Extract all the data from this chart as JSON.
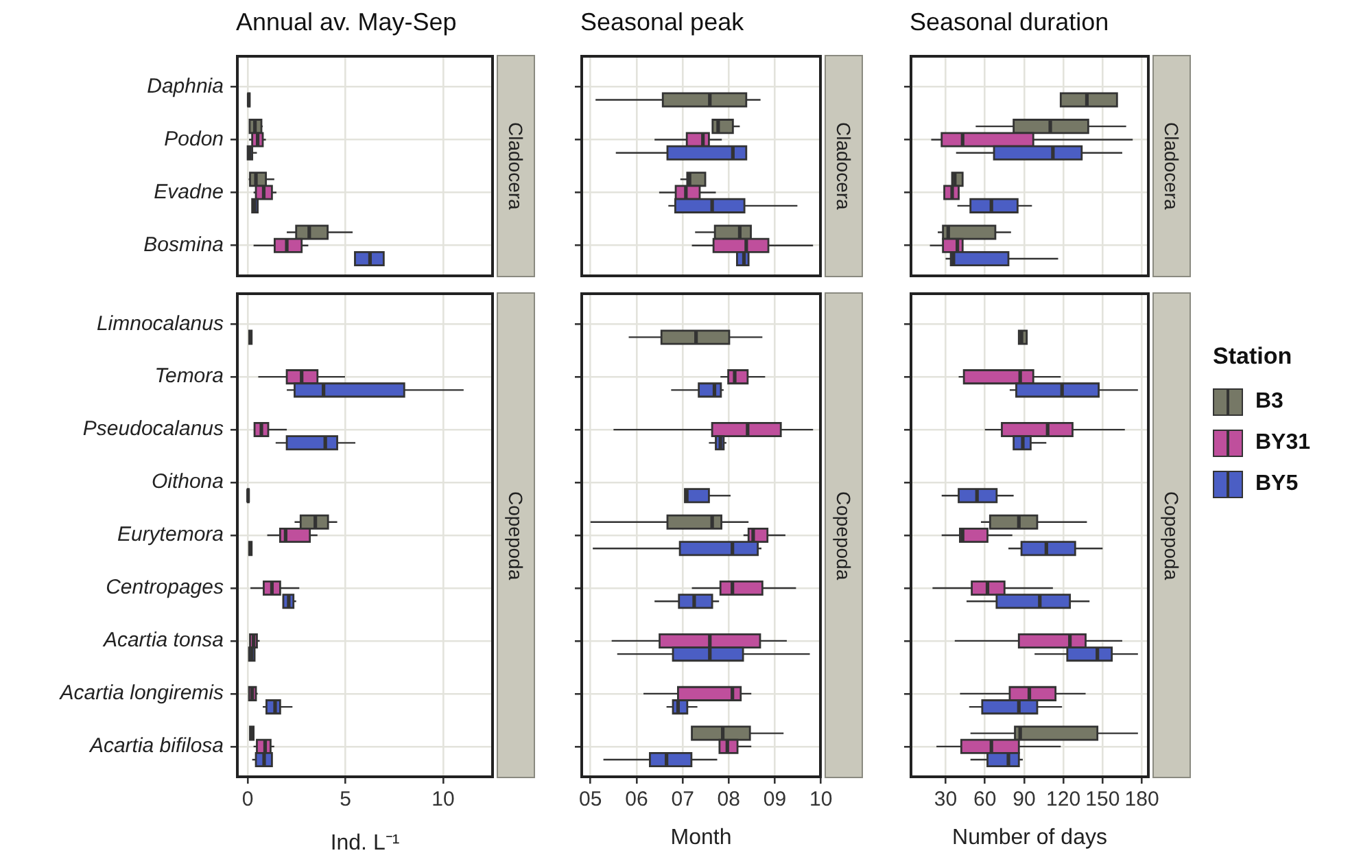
{
  "chart_data": [
    {
      "type": "box",
      "orientation": "horizontal",
      "title": "Annual av. May-Sep",
      "categories": [
        "Daphnia",
        "Podon",
        "Evadne",
        "Bosmina"
      ],
      "xlim": [
        -0.6,
        12.6
      ],
      "xticks": [
        0,
        5,
        10
      ],
      "grid": true,
      "tick_labels": "y",
      "annotations": [
        "Cladocera"
      ],
      "legend": "right",
      "legend_title": "Station",
      "series": [
        {
          "name": "B3",
          "color": "#767866",
          "boxes": [
            {
              "low": 0,
              "q1": 0.02,
              "median": 0.05,
              "q3": 0.1,
              "high": 0.12
            },
            {
              "low": 0.1,
              "q1": 0.1,
              "median": 0.37,
              "q3": 0.7,
              "high": 0.77
            },
            {
              "low": 0.05,
              "q1": 0.12,
              "median": 0.42,
              "q3": 0.93,
              "high": 1.36
            },
            {
              "low": 2,
              "q1": 2.48,
              "median": 3.15,
              "q3": 4.09,
              "high": 5.37
            }
          ]
        },
        {
          "name": "BY31",
          "color": "#bf4f9c",
          "boxes": [
            null,
            {
              "low": 0.07,
              "q1": 0.23,
              "median": 0.51,
              "q3": 0.77,
              "high": 0.93
            },
            {
              "low": 0.3,
              "q1": 0.42,
              "median": 0.82,
              "q3": 1.24,
              "high": 1.47
            },
            {
              "low": 0.3,
              "q1": 1.38,
              "median": 2,
              "q3": 2.76,
              "high": 3.1
            }
          ]
        },
        {
          "name": "BY5",
          "color": "#4b5ec4",
          "boxes": [
            null,
            {
              "low": 0,
              "q1": 0,
              "median": 0.1,
              "q3": 0.23,
              "high": 0.47
            },
            {
              "low": 0.23,
              "q1": 0.23,
              "median": 0.35,
              "q3": 0.51,
              "high": 0.51
            },
            {
              "low": 5.49,
              "q1": 5.49,
              "median": 6.26,
              "q3": 6.96,
              "high": 6.96
            }
          ]
        }
      ]
    },
    {
      "type": "box",
      "orientation": "horizontal",
      "title": "Seasonal peak",
      "categories": [
        null,
        null,
        null,
        null
      ],
      "xlim": [
        4.78,
        10.02
      ],
      "xticks": [
        5,
        6,
        7,
        8,
        9,
        10
      ],
      "grid": true,
      "tick_labels": false,
      "annotations": [
        "Cladocera"
      ],
      "series": [
        {
          "color": "#767866",
          "boxes": [
            {
              "low": 5.11,
              "q1": 6.57,
              "median": 7.59,
              "q3": 8.38,
              "high": 8.69
            },
            {
              "low": 7.65,
              "q1": 7.65,
              "median": 7.77,
              "q3": 8.09,
              "high": 8.24
            },
            {
              "low": 6.95,
              "q1": 7.1,
              "median": 7.15,
              "q3": 7.49,
              "high": 7.49
            },
            {
              "low": 7.27,
              "q1": 7.7,
              "median": 8.24,
              "q3": 8.48,
              "high": 8.48
            }
          ]
        },
        {
          "color": "#bf4f9c",
          "boxes": [
            null,
            {
              "low": 6.39,
              "q1": 7.09,
              "median": 7.44,
              "q3": 7.57,
              "high": 7.85
            },
            {
              "low": 6.49,
              "q1": 6.85,
              "median": 7.07,
              "q3": 7.37,
              "high": 7.72
            },
            {
              "low": 7.2,
              "q1": 7.67,
              "median": 8.38,
              "q3": 8.86,
              "high": 9.83
            }
          ]
        },
        {
          "color": "#4b5ec4",
          "boxes": [
            null,
            {
              "low": 5.55,
              "q1": 6.67,
              "median": 8.09,
              "q3": 8.38,
              "high": 8.38
            },
            {
              "low": 6.69,
              "q1": 6.84,
              "median": 7.64,
              "q3": 8.34,
              "high": 9.49
            },
            {
              "low": 8.18,
              "q1": 8.18,
              "median": 8.33,
              "q3": 8.43,
              "high": 8.43
            }
          ]
        }
      ]
    },
    {
      "type": "box",
      "orientation": "horizontal",
      "title": "Seasonal duration",
      "categories": [
        null,
        null,
        null,
        null
      ],
      "xlim": [
        2.5,
        186
      ],
      "xticks": [
        30,
        60,
        90,
        120,
        150,
        180
      ],
      "grid": true,
      "tick_labels": false,
      "annotations": [
        "Cladocera"
      ],
      "series": [
        {
          "color": "#767866",
          "boxes": [
            {
              "low": 118,
              "q1": 118,
              "median": 138,
              "q3": 161,
              "high": 161
            },
            {
              "low": 53,
              "q1": 82,
              "median": 110,
              "q3": 139,
              "high": 168
            },
            {
              "low": 35,
              "q1": 35,
              "median": 37,
              "q3": 43,
              "high": 43
            },
            {
              "low": 24,
              "q1": 28,
              "median": 32,
              "q3": 68,
              "high": 80
            }
          ]
        },
        {
          "color": "#bf4f9c",
          "boxes": [
            null,
            {
              "low": 19,
              "q1": 27,
              "median": 43,
              "q3": 97,
              "high": 173
            },
            {
              "low": 29,
              "q1": 29,
              "median": 35,
              "q3": 40,
              "high": 40
            },
            {
              "low": 18,
              "q1": 28,
              "median": 39,
              "q3": 43,
              "high": 43
            }
          ]
        },
        {
          "color": "#4b5ec4",
          "boxes": [
            null,
            {
              "low": 38,
              "q1": 67,
              "median": 112,
              "q3": 134,
              "high": 165
            },
            {
              "low": 39,
              "q1": 49,
              "median": 65,
              "q3": 85,
              "high": 96
            },
            {
              "low": 30,
              "q1": 34,
              "median": 36,
              "q3": 78,
              "high": 116
            }
          ]
        }
      ]
    },
    {
      "type": "box",
      "orientation": "horizontal",
      "xlabel": "Ind. L⁻¹",
      "categories": [
        "Limnocalanus",
        "Temora",
        "Pseudocalanus",
        "Oithona",
        "Eurytemora",
        "Centropages",
        "Acartia tonsa",
        "Acartia longiremis",
        "Acartia bifilosa"
      ],
      "xlim": [
        -0.6,
        12.6
      ],
      "xticks": [
        0,
        5,
        10
      ],
      "grid": true,
      "annotations": [
        "Copepoda"
      ],
      "series": [
        {
          "color": "#767866",
          "boxes": [
            {
              "low": 0.05,
              "q1": 0.08,
              "median": 0.15,
              "q3": 0.2,
              "high": 0.23
            },
            null,
            null,
            null,
            {
              "low": 2.4,
              "q1": 2.71,
              "median": 3.46,
              "q3": 4.11,
              "high": 4.58
            },
            null,
            null,
            null,
            {
              "low": 0.12,
              "q1": 0.12,
              "median": 0.2,
              "q3": 0.3,
              "high": 0.3
            }
          ]
        },
        {
          "color": "#bf4f9c",
          "boxes": [
            null,
            {
              "low": 0.54,
              "q1": 2,
              "median": 2.76,
              "q3": 3.57,
              "high": 4.98
            },
            {
              "low": 0.35,
              "q1": 0.35,
              "median": 0.7,
              "q3": 1.05,
              "high": 2
            },
            null,
            {
              "low": 1,
              "q1": 1.66,
              "median": 1.94,
              "q3": 3.18,
              "high": 3.57
            },
            {
              "low": 0.14,
              "q1": 0.82,
              "median": 1.24,
              "q3": 1.66,
              "high": 2.64
            },
            {
              "low": 0.12,
              "q1": 0.12,
              "median": 0.3,
              "q3": 0.47,
              "high": 0.61
            },
            {
              "low": 0.07,
              "q1": 0.07,
              "median": 0.23,
              "q3": 0.42,
              "high": 0.51
            },
            {
              "low": 0.3,
              "q1": 0.47,
              "median": 0.89,
              "q3": 1.17,
              "high": 1.36
            }
          ]
        },
        {
          "color": "#4b5ec4",
          "boxes": [
            null,
            {
              "low": 2,
              "q1": 2.4,
              "median": 3.88,
              "q3": 8.01,
              "high": 11.05
            },
            {
              "low": 1.43,
              "q1": 2,
              "median": 3.97,
              "q3": 4.58,
              "high": 5.51
            },
            {
              "low": 0,
              "q1": 0,
              "median": 0.02,
              "q3": 0.05,
              "high": 0.07
            },
            {
              "low": 0.05,
              "q1": 0.08,
              "median": 0.12,
              "q3": 0.2,
              "high": 0.23
            },
            {
              "low": 1.82,
              "q1": 1.82,
              "median": 2.1,
              "q3": 2.34,
              "high": 2.48
            },
            {
              "low": 0.07,
              "q1": 0.07,
              "median": 0.2,
              "q3": 0.35,
              "high": 0.35
            },
            {
              "low": 0.77,
              "q1": 0.96,
              "median": 1.4,
              "q3": 1.66,
              "high": 2.29
            },
            {
              "low": 0.23,
              "q1": 0.42,
              "median": 0.84,
              "q3": 1.24,
              "high": 1.24
            }
          ]
        }
      ]
    },
    {
      "type": "box",
      "orientation": "horizontal",
      "xlabel": "Month",
      "categories": [
        null,
        null,
        null,
        null,
        null,
        null,
        null,
        null,
        null
      ],
      "xlim": [
        4.78,
        10.02
      ],
      "xticks": [
        {
          "value": 5,
          "label": "05"
        },
        {
          "value": 6,
          "label": "06"
        },
        {
          "value": 7,
          "label": "07"
        },
        {
          "value": 8,
          "label": "08"
        },
        {
          "value": 9,
          "label": "09"
        },
        {
          "value": 10,
          "label": "10"
        }
      ],
      "grid": true,
      "tick_labels": "x",
      "annotations": [
        "Copepoda"
      ],
      "series": [
        {
          "color": "#767866",
          "boxes": [
            {
              "low": 5.83,
              "q1": 6.54,
              "median": 7.29,
              "q3": 8.01,
              "high": 8.73
            },
            null,
            null,
            null,
            {
              "low": 5,
              "q1": 6.67,
              "median": 7.64,
              "q3": 7.84,
              "high": 8.43
            },
            null,
            null,
            null,
            {
              "low": 7.2,
              "q1": 7.2,
              "median": 7.87,
              "q3": 8.46,
              "high": 9.19
            }
          ]
        },
        {
          "color": "#bf4f9c",
          "boxes": [
            null,
            {
              "low": 7.82,
              "q1": 7.99,
              "median": 8.13,
              "q3": 8.41,
              "high": 8.79
            },
            {
              "low": 5.5,
              "q1": 7.64,
              "median": 8.41,
              "q3": 9.13,
              "high": 9.83
            },
            null,
            {
              "low": 8.32,
              "q1": 8.43,
              "median": 8.53,
              "q3": 8.84,
              "high": 9.23
            },
            {
              "low": 7.2,
              "q1": 7.82,
              "median": 8.08,
              "q3": 8.73,
              "high": 9.46
            },
            {
              "low": 5.46,
              "q1": 6.5,
              "median": 7.59,
              "q3": 8.68,
              "high": 9.26
            },
            {
              "low": 6.15,
              "q1": 6.9,
              "median": 8.08,
              "q3": 8.26,
              "high": 8.49
            },
            {
              "low": 7.8,
              "q1": 7.8,
              "median": 7.97,
              "q3": 8.19,
              "high": 8.49
            }
          ]
        },
        {
          "color": "#4b5ec4",
          "boxes": [
            null,
            {
              "low": 6.75,
              "q1": 7.35,
              "median": 7.69,
              "q3": 7.83,
              "high": 7.89
            },
            {
              "low": 7.57,
              "q1": 7.72,
              "median": 7.82,
              "q3": 7.89,
              "high": 7.95
            },
            {
              "low": 7.05,
              "q1": 7.05,
              "median": 7.09,
              "q3": 7.57,
              "high": 8.04
            },
            {
              "low": 5.05,
              "q1": 6.94,
              "median": 8.08,
              "q3": 8.63,
              "high": 8.71
            },
            {
              "low": 6.39,
              "q1": 6.92,
              "median": 7.25,
              "q3": 7.64,
              "high": 7.79
            },
            {
              "low": 5.58,
              "q1": 6.79,
              "median": 7.59,
              "q3": 8.31,
              "high": 9.76
            },
            {
              "low": 6.65,
              "q1": 6.79,
              "median": 6.9,
              "q3": 7.1,
              "high": 7.32
            },
            {
              "low": 5.28,
              "q1": 6.29,
              "median": 6.65,
              "q3": 7.19,
              "high": 7.75
            }
          ]
        }
      ]
    },
    {
      "type": "box",
      "orientation": "horizontal",
      "xlabel": "Number of days",
      "categories": [
        null,
        null,
        null,
        null,
        null,
        null,
        null,
        null,
        null
      ],
      "xlim": [
        2.5,
        186
      ],
      "xticks": [
        30,
        60,
        90,
        120,
        150,
        180
      ],
      "grid": true,
      "tick_labels": "x",
      "annotations": [
        "Copepoda"
      ],
      "series": [
        {
          "color": "#767866",
          "boxes": [
            {
              "low": 86,
              "q1": 86,
              "median": 88,
              "q3": 92,
              "high": 92
            },
            null,
            null,
            null,
            {
              "low": 57,
              "q1": 64,
              "median": 86,
              "q3": 100,
              "high": 138
            },
            null,
            null,
            null,
            {
              "low": 49,
              "q1": 83,
              "median": 87,
              "q3": 146,
              "high": 177
            }
          ]
        },
        {
          "color": "#bf4f9c",
          "boxes": [
            null,
            {
              "low": 40,
              "q1": 44,
              "median": 87,
              "q3": 97,
              "high": 118
            },
            {
              "low": 60,
              "q1": 73,
              "median": 108,
              "q3": 127,
              "high": 167
            },
            null,
            {
              "low": 27,
              "q1": 41,
              "median": 43,
              "q3": 62,
              "high": 81
            },
            {
              "low": 20,
              "q1": 50,
              "median": 62,
              "q3": 75,
              "high": 112
            },
            {
              "low": 37,
              "q1": 86,
              "median": 125,
              "q3": 137,
              "high": 165
            },
            {
              "low": 41,
              "q1": 79,
              "median": 94,
              "q3": 114,
              "high": 137
            },
            {
              "low": 23,
              "q1": 42,
              "median": 65,
              "q3": 86,
              "high": 118
            }
          ]
        },
        {
          "color": "#4b5ec4",
          "boxes": [
            null,
            {
              "low": 79,
              "q1": 84,
              "median": 119,
              "q3": 147,
              "high": 177
            },
            {
              "low": 82,
              "q1": 82,
              "median": 89,
              "q3": 95,
              "high": 107
            },
            {
              "low": 27,
              "q1": 40,
              "median": 54,
              "q3": 69,
              "high": 82
            },
            {
              "low": 78,
              "q1": 88,
              "median": 107,
              "q3": 129,
              "high": 150
            },
            {
              "low": 46,
              "q1": 69,
              "median": 102,
              "q3": 125,
              "high": 140
            },
            {
              "low": 98,
              "q1": 123,
              "median": 146,
              "q3": 157,
              "high": 177
            },
            {
              "low": 48,
              "q1": 58,
              "median": 86,
              "q3": 100,
              "high": 119
            },
            {
              "low": 49,
              "q1": 62,
              "median": 78,
              "q3": 86,
              "high": 89
            }
          ]
        }
      ]
    }
  ]
}
